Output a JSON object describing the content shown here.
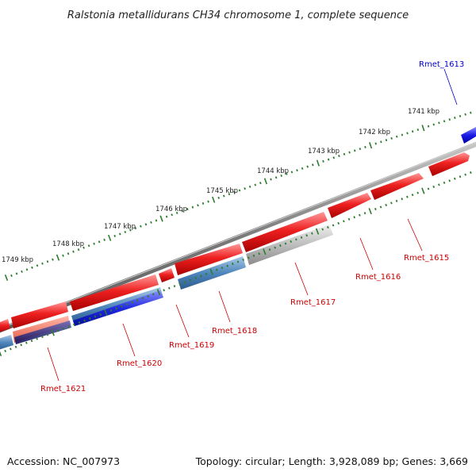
{
  "title": "Ralstonia metallidurans CH34 chromosome 1, complete sequence",
  "footer": {
    "accession": "Accession: NC_007973",
    "summary": "Topology: circular; Length: 3,928,089 bp; Genes: 3,669"
  },
  "colors": {
    "backbone": "#8a8a8a",
    "tick": "#2e7d2e",
    "forward_gene": "#ee2222",
    "reverse_gene": "#1111dd",
    "label_forward": "#cc0000",
    "label_reverse": "#0000cc"
  },
  "scale": {
    "ticks_outer": [
      "1741 kbp",
      "1742 kbp",
      "1743 kbp",
      "1744 kbp",
      "1745 kbp",
      "1746 kbp",
      "1747 kbp",
      "1748 kbp",
      "1749 kbp"
    ]
  },
  "genes": [
    {
      "label": "Rmet_1613",
      "strand": "reverse"
    },
    {
      "label": "Rmet_1615",
      "strand": "forward"
    },
    {
      "label": "Rmet_1616",
      "strand": "forward"
    },
    {
      "label": "Rmet_1617",
      "strand": "forward"
    },
    {
      "label": "Rmet_1618",
      "strand": "forward"
    },
    {
      "label": "Rmet_1619",
      "strand": "forward"
    },
    {
      "label": "Rmet_1620",
      "strand": "forward"
    },
    {
      "label": "Rmet_1621",
      "strand": "forward"
    }
  ]
}
